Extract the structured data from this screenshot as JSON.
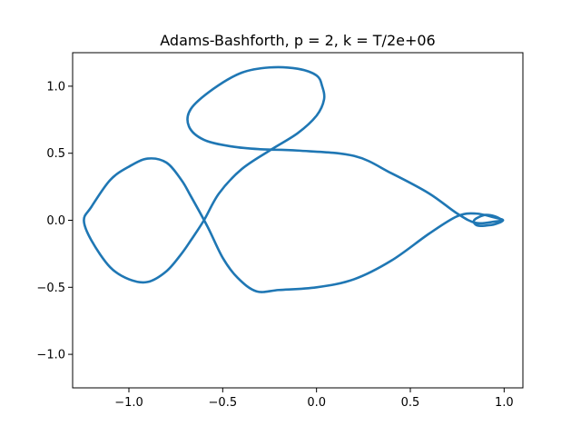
{
  "chart_data": {
    "type": "line",
    "title": "Adams-Bashforth, p = 2, k = T/2e+06",
    "xlabel": "",
    "ylabel": "",
    "xlim": [
      -1.3,
      1.1
    ],
    "ylim": [
      -1.25,
      1.25
    ],
    "grid": false,
    "line_color": "#1f77b4",
    "xticks": [
      -1.0,
      -0.5,
      0.0,
      0.5,
      1.0
    ],
    "xtick_labels": [
      "−1.0",
      "−0.5",
      "0.0",
      "0.5",
      "1.0"
    ],
    "yticks": [
      -1.0,
      -0.5,
      0.0,
      0.5,
      1.0
    ],
    "ytick_labels": [
      "−1.0",
      "−0.5",
      "0.0",
      "0.5",
      "1.0"
    ],
    "series": [
      {
        "x": [
          0.994,
          0.95,
          0.9,
          0.86,
          0.84,
          0.84,
          0.86,
          0.9,
          0.95,
          0.994,
          0.95,
          0.85,
          0.75,
          0.6,
          0.4,
          0.2,
          0.0,
          -0.2,
          -0.32,
          -0.42,
          -0.5,
          -0.58,
          -0.67,
          -0.72,
          -0.8,
          -0.9,
          -1.0,
          -1.1,
          -1.2,
          -1.24,
          -1.2,
          -1.1,
          -1.0,
          -0.9,
          -0.8,
          -0.72,
          -0.67,
          -0.6,
          -0.52,
          -0.4,
          -0.25,
          -0.1,
          0.0,
          0.04,
          0.03,
          0.0,
          -0.1,
          -0.25,
          -0.4,
          -0.55,
          -0.67,
          -0.68,
          -0.6,
          -0.45,
          -0.3,
          -0.1,
          0.2,
          0.4,
          0.6,
          0.75,
          0.85,
          0.95,
          0.994
        ],
        "y": [
          0.0,
          0.03,
          0.04,
          0.02,
          0.0,
          -0.02,
          -0.04,
          -0.04,
          -0.03,
          0.0,
          0.02,
          0.05,
          0.03,
          -0.1,
          -0.3,
          -0.44,
          -0.5,
          -0.52,
          -0.53,
          -0.43,
          -0.28,
          -0.05,
          0.18,
          0.3,
          0.43,
          0.46,
          0.4,
          0.3,
          0.1,
          0.0,
          -0.15,
          -0.35,
          -0.44,
          -0.46,
          -0.38,
          -0.25,
          -0.15,
          0.0,
          0.2,
          0.38,
          0.52,
          0.65,
          0.78,
          0.9,
          1.0,
          1.08,
          1.13,
          1.14,
          1.1,
          0.98,
          0.83,
          0.7,
          0.6,
          0.55,
          0.53,
          0.52,
          0.48,
          0.35,
          0.2,
          0.05,
          -0.02,
          -0.01,
          0.0
        ]
      }
    ]
  }
}
